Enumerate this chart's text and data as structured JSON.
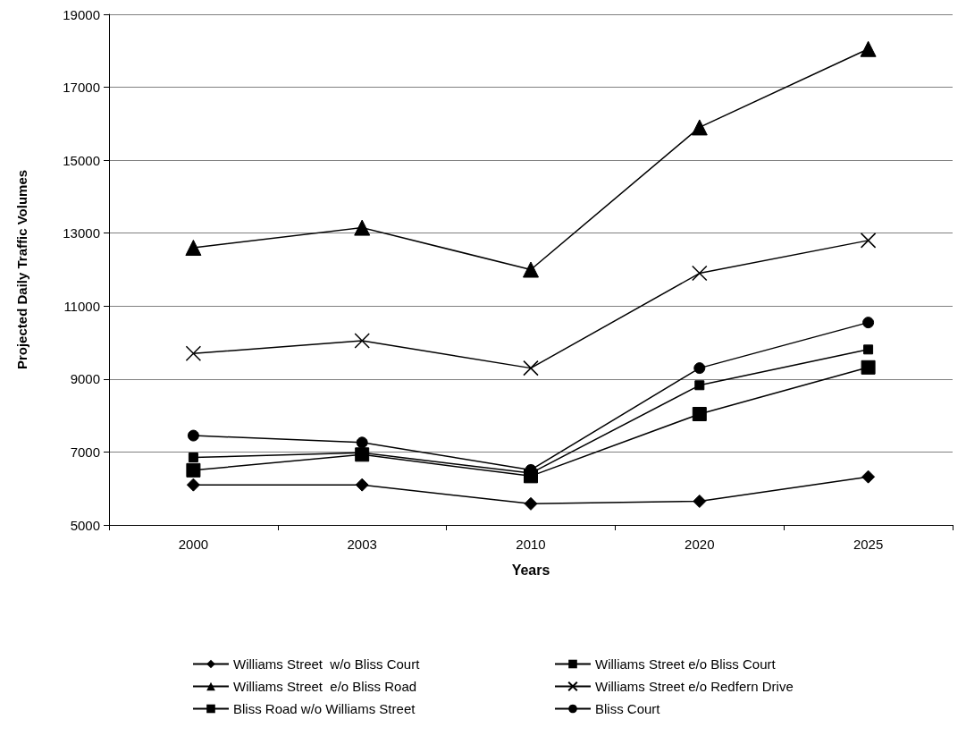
{
  "chart_data": {
    "type": "line",
    "xlabel": "Years",
    "ylabel": "Projected Daily Traffic Volumes",
    "categories": [
      "2000",
      "2003",
      "2010",
      "2020",
      "2025"
    ],
    "series": [
      {
        "name": "Williams Street  w/o Bliss Court",
        "color": "#000000",
        "marker": "diamond",
        "values": [
          6100,
          6100,
          5580,
          5650,
          6320
        ]
      },
      {
        "name": "Williams Street e/o Bliss Court",
        "color": "#000000",
        "marker": "square",
        "values": [
          6850,
          6980,
          6420,
          8830,
          9810
        ]
      },
      {
        "name": "Williams Street  e/o Bliss Road",
        "color": "#000000",
        "marker": "triangle",
        "values": [
          12600,
          13150,
          12000,
          15900,
          18050
        ]
      },
      {
        "name": "Williams Street e/o Redfern Drive",
        "color": "#000000",
        "marker": "cross",
        "values": [
          9700,
          10050,
          9300,
          11900,
          12800
        ]
      },
      {
        "name": "Bliss Road w/o Williams Street",
        "color": "#000000",
        "marker": "square",
        "values": [
          6500,
          6930,
          6340,
          8040,
          9320
        ]
      },
      {
        "name": "Bliss Court",
        "color": "#000000",
        "marker": "circle",
        "values": [
          7450,
          7260,
          6510,
          9300,
          10550
        ]
      }
    ],
    "ylim": [
      5000,
      19000
    ],
    "yticks": [
      5000,
      7000,
      9000,
      11000,
      13000,
      15000,
      17000,
      19000
    ],
    "grid": "y",
    "legend": "bottom",
    "line_style": "solid"
  }
}
